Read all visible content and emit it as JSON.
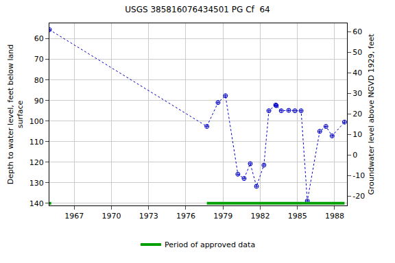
{
  "chart_data": {
    "type": "scatter",
    "title": "USGS 385816076434501 PG Cf  64",
    "y_label_lines": [
      "Depth to water level, feet below land",
      "surface"
    ],
    "y2_label_lines": [
      "Groundwater level above NGVD 1929, feet"
    ],
    "xlim": [
      1965.0,
      1989.0
    ],
    "xticks": [
      1967,
      1970,
      1973,
      1976,
      1979,
      1982,
      1985,
      1988
    ],
    "ylim": [
      141,
      52.5
    ],
    "yticks": [
      60,
      70,
      80,
      90,
      100,
      110,
      120,
      130,
      140
    ],
    "y2lim": [
      -24.5,
      64
    ],
    "y2ticks": [
      -20,
      -10,
      0,
      10,
      20,
      30,
      40,
      50,
      60
    ],
    "grid": true,
    "legend": "bottom",
    "series": [
      {
        "name": "Depth to water level",
        "color": "#0000cc",
        "marker": "circle-cross-open",
        "line_style": "dot",
        "x": [
          1965.0,
          1977.7,
          1978.6,
          1979.2,
          1980.2,
          1980.7,
          1981.2,
          1981.7,
          1982.3,
          1982.7,
          1983.25,
          1983.3,
          1983.7,
          1984.3,
          1984.8,
          1985.3,
          1985.8,
          1986.8,
          1987.3,
          1987.8,
          1988.8
        ],
        "values": [
          55.6,
          102.6,
          91,
          87.7,
          125.8,
          127.9,
          120.7,
          131.7,
          121.4,
          95,
          92.2,
          92.5,
          95,
          94.8,
          95,
          95,
          138.8,
          105,
          102.6,
          107.2,
          100.5
        ]
      }
    ],
    "approved": {
      "name": "Period of approved data",
      "color": "#00a000",
      "periods": [
        [
          1965.0,
          1965.15
        ],
        [
          1977.7,
          1988.8
        ]
      ]
    }
  }
}
